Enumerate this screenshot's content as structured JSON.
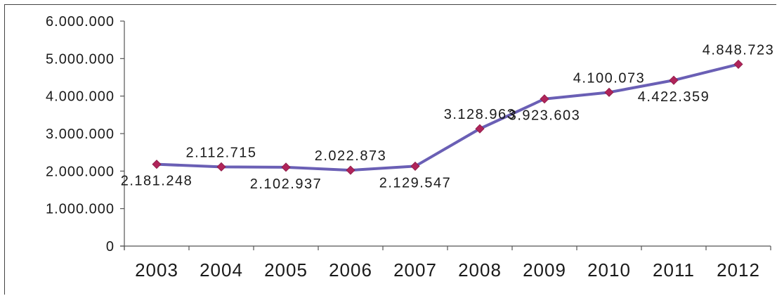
{
  "chart_data": {
    "type": "line",
    "title": "",
    "xlabel": "",
    "ylabel": "",
    "categories": [
      "2003",
      "2004",
      "2005",
      "2006",
      "2007",
      "2008",
      "2009",
      "2010",
      "2011",
      "2012"
    ],
    "series": [
      {
        "values": [
          2181248,
          2112715,
          2102937,
          2022873,
          2129547,
          3128963,
          3923603,
          4100073,
          4422359,
          4848723
        ],
        "labels": [
          "2.181.248",
          "2.112.715",
          "2.102.937",
          "2.022.873",
          "2.129.547",
          "3.128.963",
          "3.923.603",
          "4.100.073",
          "4.422.359",
          "4.848.723"
        ],
        "label_positions": [
          "below",
          "above",
          "below",
          "above",
          "below",
          "above",
          "below",
          "above",
          "below",
          "above"
        ]
      }
    ],
    "ylim": [
      0,
      6000000
    ],
    "yticks": [
      "0",
      "1.000.000",
      "2.000.000",
      "3.000.000",
      "4.000.000",
      "5.000.000",
      "6.000.000"
    ],
    "grid": false,
    "legend": "none",
    "colors": {
      "line": "#6a5fb5",
      "marker": "#b0245a",
      "axis": "#555555"
    }
  }
}
